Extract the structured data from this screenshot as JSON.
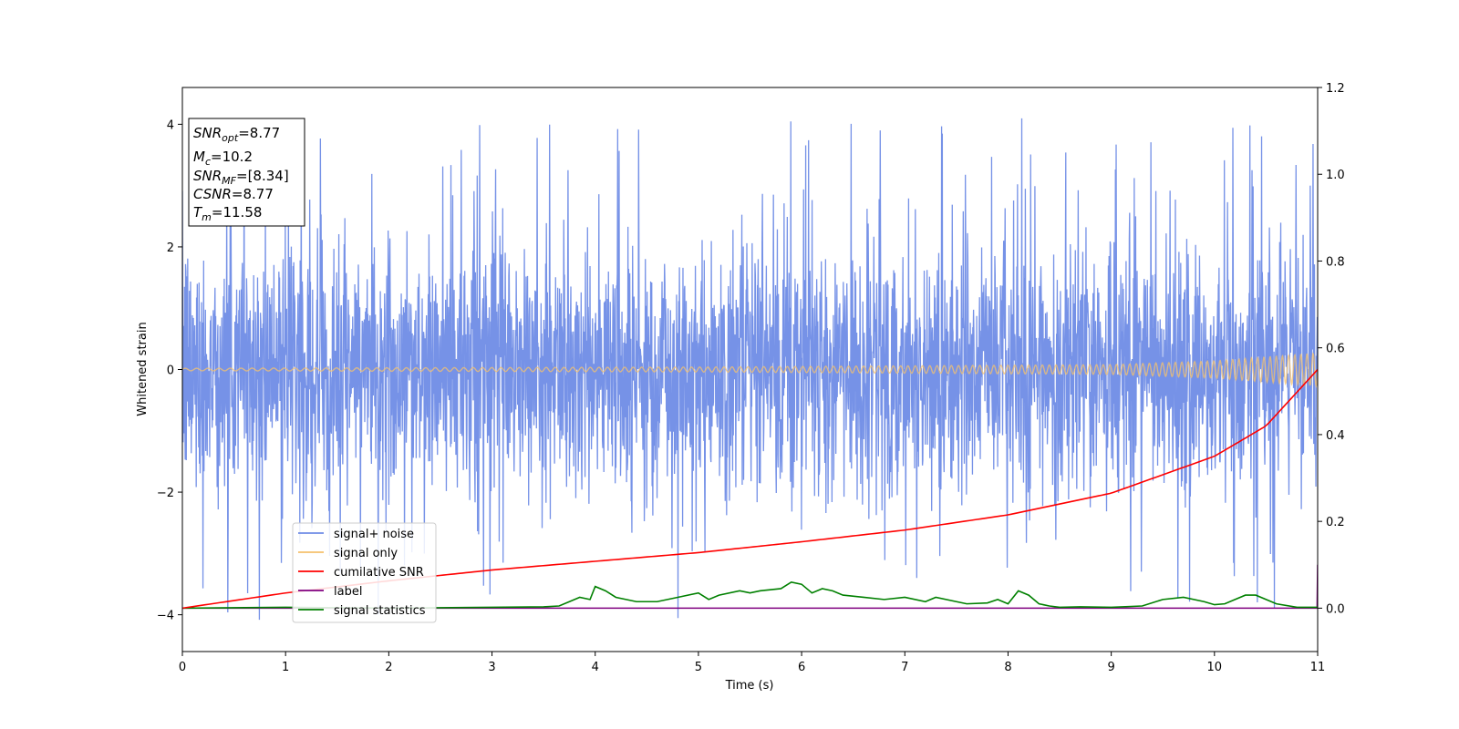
{
  "chart_data": {
    "type": "line",
    "title": "",
    "xlabel": "Time (s)",
    "ylabel": "Whitened strain",
    "y2label": "",
    "xlim": [
      0,
      11
    ],
    "ylim": [
      -4.6,
      4.6
    ],
    "y2lim": [
      -0.1,
      1.2
    ],
    "x_ticks": [
      0,
      1,
      2,
      3,
      4,
      5,
      6,
      7,
      8,
      9,
      10,
      11
    ],
    "y_ticks": [
      -4,
      -2,
      0,
      2,
      4
    ],
    "y2_ticks": [
      0.0,
      0.2,
      0.4,
      0.6,
      0.8,
      1.0,
      1.2
    ],
    "x_tick_labels": [
      "0",
      "1",
      "2",
      "3",
      "4",
      "5",
      "6",
      "7",
      "8",
      "9",
      "10",
      "11"
    ],
    "y_tick_labels": [
      "−4",
      "−2",
      "0",
      "2",
      "4"
    ],
    "y2_tick_labels": [
      "0.0",
      "0.2",
      "0.4",
      "0.6",
      "0.8",
      "1.0",
      "1.2"
    ],
    "grid": false,
    "legend_placement": "lower-left",
    "series": [
      {
        "name": "signal+ noise",
        "color": "#6f8ce6",
        "axis": "left",
        "description_values": {
          "mean": 0.0,
          "std": 1.0,
          "max": 4.15,
          "min": -4.15
        }
      },
      {
        "name": "signal only",
        "color": "#f5c16c",
        "axis": "left",
        "amplitude_envelope": {
          "x": [
            0,
            5,
            9,
            10,
            11
          ],
          "y": [
            0.02,
            0.04,
            0.08,
            0.14,
            0.27
          ]
        }
      },
      {
        "name": "cumilative SNR",
        "color": "#ff0000",
        "axis": "right",
        "x": [
          0,
          1,
          2,
          3,
          4,
          5,
          6,
          7,
          8,
          9,
          10,
          10.5,
          11
        ],
        "y": [
          0.0,
          0.035,
          0.063,
          0.088,
          0.108,
          0.128,
          0.153,
          0.18,
          0.215,
          0.265,
          0.35,
          0.42,
          0.55
        ]
      },
      {
        "name": "label",
        "color": "#800080",
        "axis": "right",
        "x": [
          0,
          10.995,
          11
        ],
        "y": [
          0.0,
          0.0,
          0.1
        ]
      },
      {
        "name": "signal statistics",
        "color": "#008000",
        "axis": "right",
        "x": [
          0,
          1,
          2,
          3,
          3.5,
          3.65,
          3.75,
          3.85,
          3.95,
          4.0,
          4.1,
          4.2,
          4.4,
          4.6,
          4.8,
          5.0,
          5.1,
          5.2,
          5.4,
          5.5,
          5.6,
          5.8,
          5.9,
          6.0,
          6.1,
          6.2,
          6.3,
          6.4,
          6.6,
          6.8,
          7.0,
          7.2,
          7.3,
          7.5,
          7.6,
          7.8,
          7.9,
          8.0,
          8.1,
          8.2,
          8.3,
          8.4,
          8.5,
          8.7,
          9.0,
          9.3,
          9.5,
          9.7,
          9.9,
          10.0,
          10.1,
          10.3,
          10.4,
          10.6,
          10.8,
          11.0
        ],
        "y": [
          0.0,
          0.002,
          0.0,
          0.002,
          0.003,
          0.005,
          0.015,
          0.025,
          0.02,
          0.05,
          0.04,
          0.025,
          0.015,
          0.015,
          0.025,
          0.035,
          0.02,
          0.03,
          0.04,
          0.035,
          0.04,
          0.045,
          0.06,
          0.055,
          0.035,
          0.045,
          0.04,
          0.03,
          0.025,
          0.02,
          0.025,
          0.015,
          0.025,
          0.015,
          0.01,
          0.012,
          0.02,
          0.01,
          0.04,
          0.03,
          0.01,
          0.005,
          0.002,
          0.003,
          0.002,
          0.005,
          0.02,
          0.025,
          0.015,
          0.008,
          0.01,
          0.03,
          0.03,
          0.01,
          0.002,
          0.002
        ]
      }
    ],
    "annotation_box": {
      "lines": [
        {
          "sym": "SNR",
          "sub": "opt",
          "val": "=8.77"
        },
        {
          "sym": "M",
          "sub": "c",
          "val": "=10.2"
        },
        {
          "sym": "SNR",
          "sub": "MF",
          "val": "=[8.34]"
        },
        {
          "sym": "CSNR",
          "sub": "",
          "val": "=8.77"
        },
        {
          "sym": "T",
          "sub": "m",
          "val": "=11.58"
        }
      ]
    }
  }
}
